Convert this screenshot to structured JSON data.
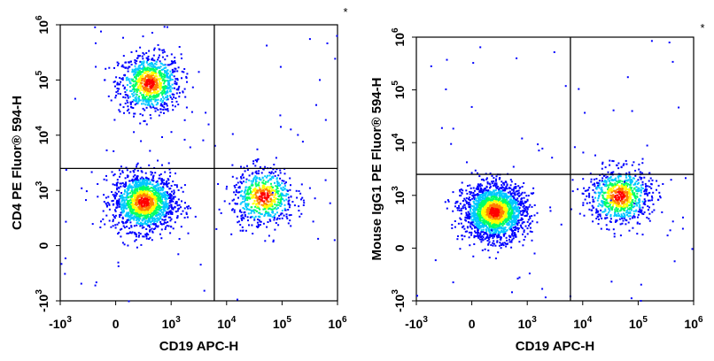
{
  "chart_data": [
    {
      "type": "scatter",
      "title": "",
      "xlabel": "CD19 APC-H",
      "ylabel": "CD4 PE Fluor® 594-H",
      "scale": "biexponential",
      "xlim": [
        -1000,
        1000000
      ],
      "ylim": [
        -1000,
        1000000
      ],
      "x_ticks": [
        {
          "base": "-10",
          "exp": "3",
          "value": -1000
        },
        {
          "base": "0",
          "exp": "",
          "value": 0
        },
        {
          "base": "10",
          "exp": "3",
          "value": 1000
        },
        {
          "base": "10",
          "exp": "4",
          "value": 10000
        },
        {
          "base": "10",
          "exp": "5",
          "value": 100000
        },
        {
          "base": "10",
          "exp": "6",
          "value": 1000000
        }
      ],
      "y_ticks": [
        {
          "base": "-10",
          "exp": "3",
          "value": -1000
        },
        {
          "base": "0",
          "exp": "",
          "value": 0
        },
        {
          "base": "10",
          "exp": "3",
          "value": 1000
        },
        {
          "base": "10",
          "exp": "4",
          "value": 10000
        },
        {
          "base": "10",
          "exp": "5",
          "value": 100000
        },
        {
          "base": "10",
          "exp": "6",
          "value": 1000000
        }
      ],
      "gates": {
        "x": 6000,
        "y": 2500
      },
      "corner_mark": "*",
      "populations": [
        {
          "x": 600,
          "y": 90000,
          "events": 900
        },
        {
          "x": 500,
          "y": 800,
          "events": 1500
        },
        {
          "x": 45000,
          "y": 900,
          "events": 650
        }
      ],
      "colormap": [
        "#0000ff",
        "#00c8ff",
        "#00ff66",
        "#ffff00",
        "#ff7f00",
        "#ff0000"
      ]
    },
    {
      "type": "scatter",
      "title": "",
      "xlabel": "CD19 APC-H",
      "ylabel": "Mouse IgG1 PE Fluor® 594-H",
      "scale": "biexponential",
      "xlim": [
        -1000,
        1000000
      ],
      "ylim": [
        -1000,
        1000000
      ],
      "x_ticks": [
        {
          "base": "-10",
          "exp": "3",
          "value": -1000
        },
        {
          "base": "0",
          "exp": "",
          "value": 0
        },
        {
          "base": "10",
          "exp": "3",
          "value": 1000
        },
        {
          "base": "10",
          "exp": "4",
          "value": 10000
        },
        {
          "base": "10",
          "exp": "5",
          "value": 100000
        },
        {
          "base": "10",
          "exp": "6",
          "value": 1000000
        }
      ],
      "y_ticks": [
        {
          "base": "-10",
          "exp": "3",
          "value": -1000
        },
        {
          "base": "0",
          "exp": "",
          "value": 0
        },
        {
          "base": "10",
          "exp": "3",
          "value": 1000
        },
        {
          "base": "10",
          "exp": "4",
          "value": 10000
        },
        {
          "base": "10",
          "exp": "5",
          "value": 100000
        },
        {
          "base": "10",
          "exp": "6",
          "value": 1000000
        }
      ],
      "gates": {
        "x": 6000,
        "y": 2500
      },
      "corner_mark": "*",
      "populations": [
        {
          "x": 400,
          "y": 700,
          "events": 2000
        },
        {
          "x": 45000,
          "y": 1000,
          "events": 800
        }
      ],
      "colormap": [
        "#0000ff",
        "#00c8ff",
        "#00ff66",
        "#ffff00",
        "#ff7f00",
        "#ff0000"
      ]
    }
  ]
}
